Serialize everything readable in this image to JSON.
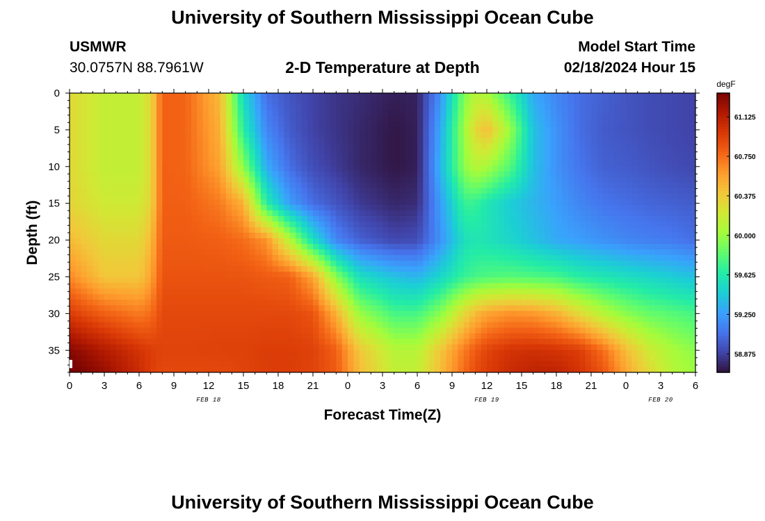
{
  "page": {
    "title_top": "University of Southern Mississippi Ocean Cube",
    "title_bottom": "University of Southern Mississippi Ocean Cube",
    "station_name": "USMWR",
    "station_coords": "30.0757N  88.7961W",
    "chart_title": "2-D Temperature at Depth",
    "model_label": "Model Start Time",
    "model_time": "02/18/2024 Hour 15"
  },
  "chart_data": {
    "type": "heatmap",
    "title": "2-D Temperature at Depth",
    "xlabel": "Forecast Time(Z)",
    "ylabel": "Depth (ft)",
    "units": "degF",
    "x_hours_from_start": [
      0,
      54
    ],
    "xlim_hours": [
      0,
      54
    ],
    "x_tick_labels": [
      "0",
      "3",
      "6",
      "9",
      "12",
      "15",
      "18",
      "21",
      "0",
      "3",
      "6",
      "9",
      "12",
      "15",
      "18",
      "21",
      "0",
      "3",
      "6"
    ],
    "date_labels": [
      {
        "label": "FEB 18",
        "at_hour": 12
      },
      {
        "label": "FEB 19",
        "at_hour": 36
      },
      {
        "label": "FEB 20",
        "at_hour": 51
      }
    ],
    "ylim": [
      0,
      38
    ],
    "y_inverted": true,
    "y_ticks": [
      0,
      5,
      10,
      15,
      20,
      25,
      30,
      35
    ],
    "colorbar": {
      "range": [
        58.7,
        61.35
      ],
      "ticks": [
        "61.125",
        "60.750",
        "60.375",
        "60.000",
        "59.625",
        "59.250",
        "58.875"
      ],
      "tick_values": [
        61.125,
        60.75,
        60.375,
        60.0,
        59.625,
        59.25,
        58.875
      ],
      "colormap": [
        "#30123b",
        "#4145ab",
        "#4675ed",
        "#39a2fc",
        "#1bcfd4",
        "#24eca6",
        "#61fc6c",
        "#a4fc3b",
        "#d1e834",
        "#f3c63a",
        "#fe9b2d",
        "#f36315",
        "#d93806",
        "#b11901",
        "#7a0402"
      ]
    },
    "grid_note": "Estimated temperature field (degF); rows = depth, columns = forecast hour",
    "depths_ft": [
      0,
      5,
      10,
      15,
      20,
      25,
      30,
      35,
      38
    ],
    "hours": [
      0,
      3,
      6,
      7,
      8,
      10,
      13,
      15,
      17,
      19,
      21,
      23,
      25,
      28,
      30,
      32,
      34,
      35,
      36,
      38,
      40,
      42,
      44,
      46,
      48,
      50,
      52,
      54
    ],
    "values": [
      [
        60.3,
        60.15,
        60.15,
        60.3,
        60.8,
        60.78,
        60.45,
        59.5,
        59.05,
        58.95,
        58.88,
        58.83,
        58.8,
        58.75,
        58.76,
        59.2,
        59.9,
        60.1,
        60.05,
        59.7,
        59.3,
        59.15,
        59.05,
        59.0,
        58.95,
        58.92,
        58.9,
        58.88
      ],
      [
        60.3,
        60.15,
        60.15,
        60.3,
        60.8,
        60.78,
        60.5,
        59.65,
        59.15,
        58.98,
        58.88,
        58.83,
        58.78,
        58.72,
        58.75,
        59.3,
        60.0,
        60.3,
        60.45,
        60.0,
        59.4,
        59.2,
        59.05,
        58.98,
        58.95,
        58.92,
        58.9,
        58.88
      ],
      [
        60.3,
        60.15,
        60.15,
        60.3,
        60.8,
        60.78,
        60.55,
        59.95,
        59.3,
        59.05,
        58.92,
        58.85,
        58.78,
        58.72,
        58.75,
        59.35,
        59.95,
        60.1,
        60.05,
        59.8,
        59.4,
        59.2,
        59.08,
        59.0,
        58.98,
        58.95,
        58.92,
        58.9
      ],
      [
        60.32,
        60.2,
        60.2,
        60.32,
        60.8,
        60.8,
        60.7,
        60.5,
        59.65,
        59.25,
        59.05,
        58.95,
        58.85,
        58.78,
        58.8,
        59.25,
        59.7,
        59.7,
        59.6,
        59.45,
        59.35,
        59.25,
        59.15,
        59.08,
        59.05,
        59.02,
        59.0,
        58.98
      ],
      [
        60.45,
        60.3,
        60.3,
        60.45,
        60.82,
        60.82,
        60.8,
        60.75,
        60.62,
        60.1,
        59.55,
        59.15,
        59.0,
        58.9,
        58.92,
        59.2,
        59.55,
        59.6,
        59.58,
        59.5,
        59.4,
        59.3,
        59.25,
        59.2,
        59.15,
        59.12,
        59.1,
        59.05
      ],
      [
        60.65,
        60.4,
        60.4,
        60.55,
        60.85,
        60.85,
        60.85,
        60.85,
        60.82,
        60.8,
        60.55,
        59.95,
        59.55,
        59.4,
        59.35,
        59.5,
        59.7,
        59.75,
        59.78,
        59.8,
        59.78,
        59.75,
        59.65,
        59.6,
        59.55,
        59.5,
        59.45,
        59.4
      ],
      [
        60.95,
        60.8,
        60.7,
        60.75,
        60.9,
        60.9,
        60.9,
        60.9,
        60.9,
        60.9,
        60.85,
        60.5,
        60.0,
        59.75,
        59.75,
        59.95,
        60.3,
        60.45,
        60.55,
        60.62,
        60.6,
        60.5,
        60.3,
        60.1,
        59.95,
        59.85,
        59.8,
        59.75
      ],
      [
        61.3,
        61.15,
        61.0,
        60.95,
        60.92,
        60.92,
        60.93,
        60.93,
        60.95,
        60.95,
        60.93,
        60.8,
        60.4,
        60.1,
        60.1,
        60.4,
        60.7,
        60.82,
        60.92,
        61.0,
        61.02,
        61.0,
        60.95,
        60.75,
        60.45,
        60.2,
        60.05,
        59.95
      ],
      [
        61.4,
        61.25,
        61.05,
        60.95,
        60.9,
        60.9,
        60.9,
        60.92,
        60.95,
        60.95,
        60.92,
        60.82,
        60.45,
        60.15,
        60.15,
        60.45,
        60.75,
        60.88,
        60.95,
        61.05,
        61.1,
        61.1,
        61.0,
        60.85,
        60.55,
        60.3,
        60.1,
        60.0
      ]
    ]
  }
}
